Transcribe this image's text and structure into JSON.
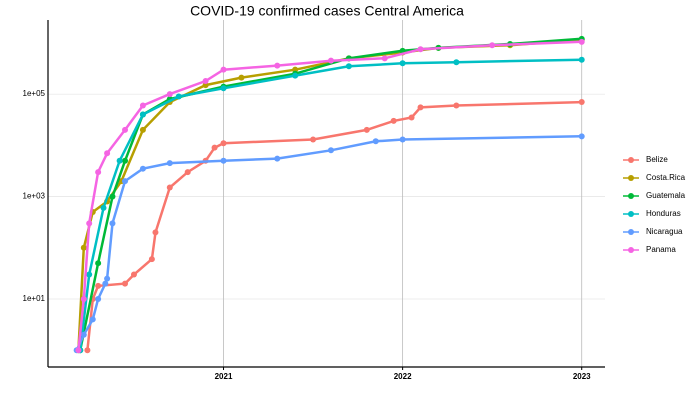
{
  "chart_data": {
    "type": "line",
    "title": "COVID-19 confirmed cases Central America",
    "log_y": true,
    "grid": true,
    "legend": "right",
    "xlim": [
      2020.02,
      2023.13
    ],
    "xticks": [
      2021,
      2022,
      2023
    ],
    "ylim": [
      0.47,
      2800000
    ],
    "yticks": [
      {
        "value": 10,
        "label": "1e+01"
      },
      {
        "value": 1000,
        "label": "1e+03"
      },
      {
        "value": 100000,
        "label": "1e+05"
      }
    ],
    "series": [
      {
        "name": "Belize",
        "color": "#F8766D",
        "x": [
          2020.24,
          2020.27,
          2020.3,
          2020.45,
          2020.5,
          2020.6,
          2020.62,
          2020.7,
          2020.8,
          2020.9,
          2020.95,
          2021.0,
          2021.5,
          2021.8,
          2021.95,
          2022.05,
          2022.1,
          2022.3,
          2023.0
        ],
        "values": [
          1,
          10,
          18,
          20,
          30,
          60,
          200,
          1500,
          3000,
          5000,
          9000,
          11000,
          13000,
          20000,
          30000,
          35000,
          55000,
          60000,
          70000
        ]
      },
      {
        "name": "Costa.Rica",
        "color": "#B79F00",
        "x": [
          2020.19,
          2020.22,
          2020.27,
          2020.35,
          2020.43,
          2020.55,
          2020.7,
          2020.9,
          2021.1,
          2021.4,
          2021.7,
          2022.0,
          2022.2,
          2022.6,
          2023.0
        ],
        "values": [
          1,
          100,
          500,
          800,
          2000,
          20000,
          70000,
          150000,
          210000,
          300000,
          500000,
          650000,
          800000,
          900000,
          1150000
        ]
      },
      {
        "name": "Guatemala",
        "color": "#00BA38",
        "x": [
          2020.2,
          2020.3,
          2020.38,
          2020.45,
          2020.55,
          2020.7,
          2021.0,
          2021.4,
          2021.7,
          2022.0,
          2022.2,
          2022.6,
          2023.0
        ],
        "values": [
          1,
          50,
          1000,
          5000,
          40000,
          80000,
          140000,
          250000,
          500000,
          700000,
          800000,
          950000,
          1200000
        ]
      },
      {
        "name": "Honduras",
        "color": "#00BFC4",
        "x": [
          2020.2,
          2020.25,
          2020.33,
          2020.42,
          2020.55,
          2020.75,
          2021.0,
          2021.4,
          2021.7,
          2022.0,
          2022.3,
          2023.0
        ],
        "values": [
          1,
          30,
          600,
          5000,
          40000,
          90000,
          130000,
          230000,
          350000,
          400000,
          420000,
          470000
        ]
      },
      {
        "name": "Nicaragua",
        "color": "#619CFF",
        "x": [
          2020.18,
          2020.22,
          2020.27,
          2020.3,
          2020.34,
          2020.35,
          2020.38,
          2020.45,
          2020.55,
          2020.7,
          2021.0,
          2021.3,
          2021.6,
          2021.85,
          2022.0,
          2023.0
        ],
        "values": [
          1,
          2,
          4,
          10,
          20,
          25,
          300,
          2000,
          3500,
          4500,
          5000,
          5500,
          8000,
          12000,
          13000,
          15000
        ]
      },
      {
        "name": "Panama",
        "color": "#F564E3",
        "x": [
          2020.19,
          2020.22,
          2020.25,
          2020.3,
          2020.35,
          2020.45,
          2020.55,
          2020.7,
          2020.9,
          2021.0,
          2021.3,
          2021.6,
          2021.9,
          2022.1,
          2022.5,
          2023.0
        ],
        "values": [
          1,
          10,
          300,
          3000,
          7000,
          20000,
          60000,
          100000,
          180000,
          300000,
          360000,
          450000,
          500000,
          750000,
          900000,
          1050000
        ]
      }
    ]
  }
}
